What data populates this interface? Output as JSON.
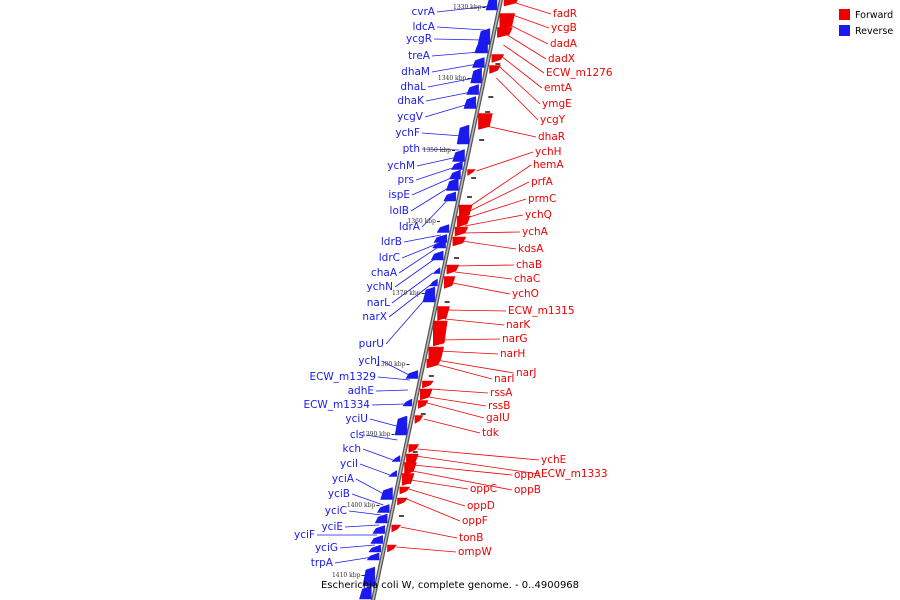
{
  "colors": {
    "forward": "#ee0000",
    "reverse": "#1a1aee",
    "backbone": "#888888",
    "tick": "#222222"
  },
  "legend": [
    {
      "label": "Forward",
      "strand": "forward"
    },
    {
      "label": "Reverse",
      "strand": "reverse"
    }
  ],
  "caption": "Escherichia coli W, complete genome. - 0..4900968",
  "kbp_ticks": [
    "1330 kbp",
    "1340 kbp",
    "1350 kbp",
    "1360 kbp",
    "1370 kbp",
    "1380 kbp",
    "1390 kbp",
    "1400 kbp",
    "1410 kbp"
  ],
  "reverse_genes": [
    "cvrA",
    "ldcA",
    "ycgR",
    "treA",
    "dhaM",
    "dhaL",
    "dhaK",
    "ycgV",
    "ychF",
    "pth",
    "ychM",
    "prs",
    "ispE",
    "lolB",
    "ldrA",
    "ldrB",
    "ldrC",
    "chaA",
    "ychN",
    "narL",
    "narX",
    "purU",
    "ychJ",
    "ECW_m1329",
    "adhE",
    "ECW_m1334",
    "yciU",
    "cls",
    "kch",
    "yciI",
    "yciA",
    "yciB",
    "yciC",
    "yciE",
    "yciF",
    "yciG",
    "trpA"
  ],
  "forward_genes": [
    "fadR",
    "ycgB",
    "dadA",
    "dadX",
    "ECW_m1276",
    "emtA",
    "ymgE",
    "ycgY",
    "dhaR",
    "ychH",
    "hemA",
    "prfA",
    "prmC",
    "ychQ",
    "ychA",
    "kdsA",
    "chaB",
    "chaC",
    "ychO",
    "ECW_m1315",
    "narK",
    "narG",
    "narH",
    "narJ",
    "narI",
    "rssA",
    "rssB",
    "galU",
    "tdk",
    "ychE",
    "ECW_m1333",
    "oppA",
    "oppB",
    "oppC",
    "oppD",
    "oppF",
    "tonB",
    "ompW"
  ]
}
